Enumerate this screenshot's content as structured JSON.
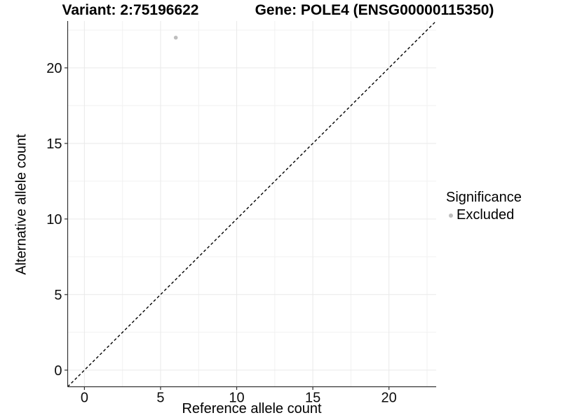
{
  "chart_data": {
    "type": "scatter",
    "title_left": "Variant: 2:75196622",
    "title_right": "Gene: POLE4 (ENSG00000115350)",
    "xlabel": "Reference allele count",
    "ylabel": "Alternative allele count",
    "xlim": [
      -1.1,
      23.1
    ],
    "ylim": [
      -1.1,
      23.1
    ],
    "x_ticks": [
      0,
      5,
      10,
      15,
      20
    ],
    "y_ticks": [
      0,
      5,
      10,
      15,
      20
    ],
    "x_minor_ticks": [
      2.5,
      7.5,
      12.5,
      17.5,
      22.5
    ],
    "y_minor_ticks": [
      2.5,
      7.5,
      12.5,
      17.5,
      22.5
    ],
    "grid": true,
    "series": [
      {
        "name": "Excluded",
        "marker": "circle",
        "color": "#bebebe",
        "points": [
          {
            "x": 6,
            "y": 22
          }
        ]
      }
    ],
    "reference_line": {
      "type": "identity",
      "slope": 1,
      "intercept": 0,
      "style": "dashed",
      "color": "#000000"
    },
    "legend": {
      "title": "Significance",
      "position": "right",
      "entries": [
        {
          "label": "Excluded",
          "color": "#bebebe",
          "marker": "circle"
        }
      ]
    },
    "style": {
      "background": "#ffffff",
      "grid_major_color": "#e9e9e9",
      "grid_minor_color": "#f1f1f1",
      "axis_line_color": "#333333",
      "tick_color": "#333333",
      "tick_label_color": "#0d0d0d",
      "point_color": "#bebebe",
      "dashed_line_color": "#000000"
    }
  }
}
